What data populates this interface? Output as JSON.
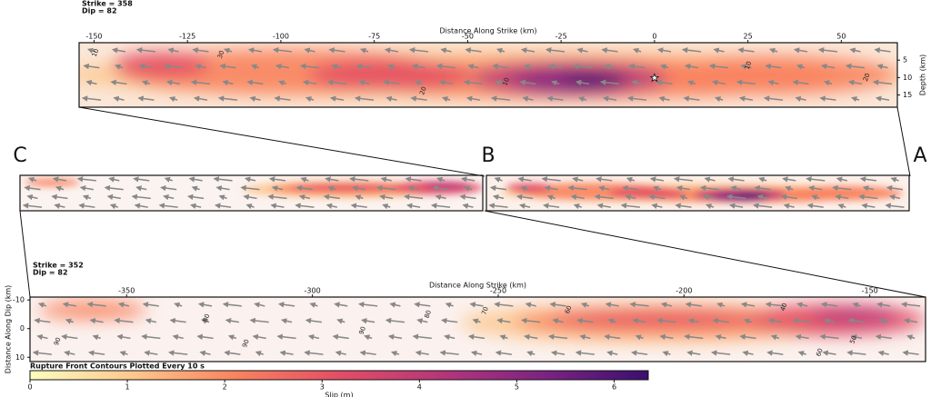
{
  "chart_data": [
    {
      "type": "slip-map",
      "strike": "Strike = 358",
      "dip": "Dip = 82",
      "xlabel": "Distance Along Strike (km)",
      "ylabel": "Depth (km)",
      "xlim": [
        -154,
        65
      ],
      "xticks": [
        -150,
        -125,
        -100,
        -75,
        -50,
        -25,
        0,
        25,
        50
      ],
      "ylim": [
        0,
        18.5
      ],
      "yticks": [
        5,
        10,
        15
      ],
      "yaxis_side": "right",
      "hypocenter": [
        0,
        10
      ],
      "contour_labels": [
        {
          "text": "10",
          "x": -149.6,
          "y": 2.9
        },
        {
          "text": "30",
          "x": -116,
          "y": 3.4
        },
        {
          "text": "20",
          "x": -61.9,
          "y": 13.8
        },
        {
          "text": "10",
          "x": -39.7,
          "y": 11.2
        },
        {
          "text": "10",
          "x": 25.1,
          "y": 6.5
        },
        {
          "text": "20",
          "x": 56.8,
          "y": 9.9
        }
      ]
    },
    {
      "type": "overview",
      "labels": [
        "C",
        "B",
        "A"
      ]
    },
    {
      "type": "slip-map",
      "strike": "Strike = 352",
      "dip": "Dip = 82",
      "xlabel": "Distance Along Strike (km)",
      "ylabel": "Distance Along Dip (km)",
      "xlim": [
        -376,
        -135
      ],
      "xticks": [
        -350,
        -300,
        -250,
        -200,
        -150
      ],
      "ylim": [
        -11,
        11.5
      ],
      "yticks": [
        -10,
        0,
        10
      ],
      "yaxis_side": "left",
      "contour_labels": [
        {
          "text": "80",
          "x": -328.5,
          "y": -3.7
        },
        {
          "text": "90",
          "x": -368.6,
          "y": 4.5
        },
        {
          "text": "90",
          "x": -317.9,
          "y": 5.2
        },
        {
          "text": "90",
          "x": -286.5,
          "y": 0.7
        },
        {
          "text": "80",
          "x": -268.9,
          "y": -5
        },
        {
          "text": "70",
          "x": -253.5,
          "y": -6.2
        },
        {
          "text": "60",
          "x": -231.1,
          "y": -6.6
        },
        {
          "text": "40",
          "x": -173.1,
          "y": -7.5
        },
        {
          "text": "50",
          "x": -154.4,
          "y": 3.9
        },
        {
          "text": "60",
          "x": -163.5,
          "y": 8.3
        }
      ]
    },
    {
      "type": "colorbar",
      "title": "Rupture Front Contours Plotted Every 10 s",
      "xlabel": "Slip (m)",
      "xlim": [
        0,
        6.35
      ],
      "xticks": [
        0,
        1,
        2,
        3,
        4,
        5,
        6
      ],
      "colors": [
        "#fcfdbf",
        "#fdc78d",
        "#f9825f",
        "#e34e65",
        "#b5367a",
        "#7c2382",
        "#3b0f70"
      ]
    }
  ]
}
